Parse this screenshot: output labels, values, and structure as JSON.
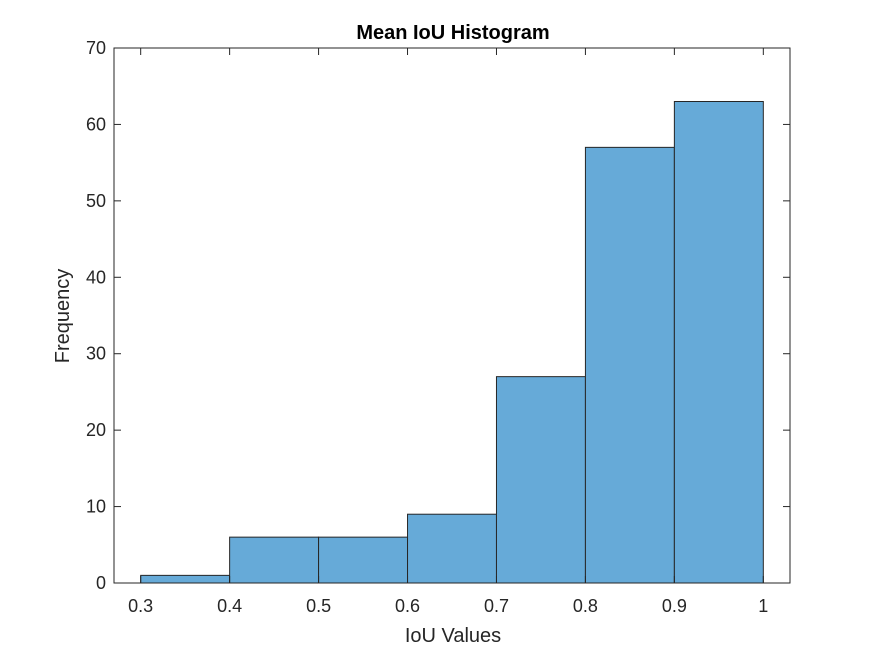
{
  "chart_data": {
    "type": "bar",
    "title": "Mean IoU Histogram",
    "xlabel": "IoU Values",
    "ylabel": "Frequency",
    "bin_edges": [
      0.3,
      0.4,
      0.5,
      0.6,
      0.7,
      0.8,
      0.9,
      1.0
    ],
    "values": [
      1,
      6,
      6,
      9,
      27,
      57,
      63
    ],
    "xlim": [
      0.27,
      1.03
    ],
    "ylim": [
      0,
      70
    ],
    "xticks": [
      0.3,
      0.4,
      0.5,
      0.6,
      0.7,
      0.8,
      0.9,
      1
    ],
    "xtick_labels": [
      "0.3",
      "0.4",
      "0.5",
      "0.6",
      "0.7",
      "0.8",
      "0.9",
      "1"
    ],
    "yticks": [
      0,
      10,
      20,
      30,
      40,
      50,
      60,
      70
    ],
    "ytick_labels": [
      "0",
      "10",
      "20",
      "30",
      "40",
      "50",
      "60",
      "70"
    ],
    "bar_color": "#66aad8",
    "edge_color": "#262626",
    "axis_color": "#262626",
    "grid": false,
    "legend": false
  }
}
